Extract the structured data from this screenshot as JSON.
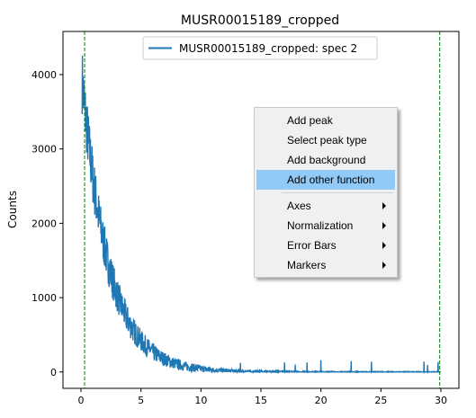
{
  "window": {
    "title": "MUSR00015189_cropped"
  },
  "chart_data": {
    "type": "line",
    "title": "MUSR00015189_cropped",
    "xlabel": "",
    "ylabel": "Counts",
    "xlim": [
      -1.5,
      31.5
    ],
    "ylim": [
      -220,
      4580
    ],
    "xticks": [
      0,
      5,
      10,
      15,
      20,
      25,
      30
    ],
    "yticks": [
      0,
      1000,
      2000,
      3000,
      4000
    ],
    "grid": false,
    "legend": "top-center",
    "series": [
      {
        "name": "MUSR00015189_cropped: spec 2",
        "color": "#1f77b4",
        "decay_model": {
          "amplitude": 4100,
          "tau": 2.2,
          "x_start": 0.1,
          "x_end": 30
        }
      }
    ],
    "vlines": [
      {
        "x": 0.3,
        "color": "#008000",
        "style": "dashed"
      },
      {
        "x": 29.9,
        "color": "#008000",
        "style": "dashed"
      }
    ]
  },
  "context_menu": {
    "items": [
      {
        "label": "Add peak",
        "submenu": false,
        "highlighted": false
      },
      {
        "label": "Select peak type",
        "submenu": false,
        "highlighted": false
      },
      {
        "label": "Add background",
        "submenu": false,
        "highlighted": false
      },
      {
        "label": "Add other function",
        "submenu": false,
        "highlighted": true
      },
      {
        "separator": true
      },
      {
        "label": "Axes",
        "submenu": true,
        "highlighted": false
      },
      {
        "label": "Normalization",
        "submenu": true,
        "highlighted": false
      },
      {
        "label": "Error Bars",
        "submenu": true,
        "highlighted": false
      },
      {
        "label": "Markers",
        "submenu": true,
        "highlighted": false
      }
    ]
  }
}
